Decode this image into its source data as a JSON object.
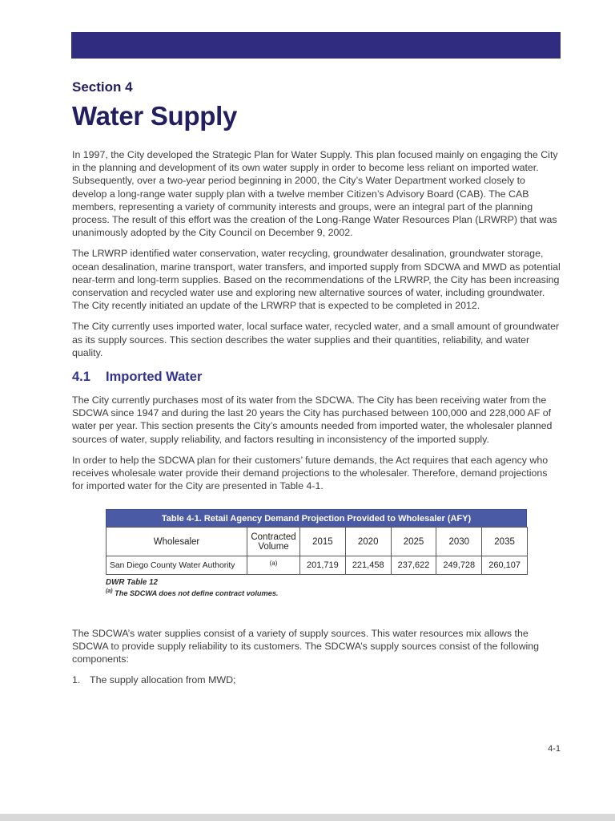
{
  "header": {
    "section_label": "Section 4",
    "title": "Water Supply"
  },
  "intro": {
    "p1": "In 1997, the City developed the Strategic Plan for Water Supply.  This plan focused mainly on engaging the City in the planning and development of its own water supply in order to become less reliant on imported water.  Subsequently, over a two-year period beginning in 2000, the City’s Water Department worked closely to develop a long-range water supply plan with a twelve member Citizen’s Advisory Board (CAB).  The CAB members, representing a variety of community interests and groups, were an integral part of the planning process.  The result of this effort was the creation of the Long-Range Water Resources Plan (LRWRP) that was unanimously adopted by the City Council on December 9, 2002.",
    "p2": "The LRWRP identified water conservation, water recycling, groundwater desalination, groundwater storage, ocean desalination, marine transport, water transfers, and imported supply from SDCWA and MWD as potential near-term and long-term supplies.  Based on the recommendations of the LRWRP, the City has been increasing conservation and recycled water use and exploring new alternative sources of water, including groundwater.  The City recently initiated an update of the LRWRP that is expected to be completed in 2012.",
    "p3": "The City currently uses imported water, local surface water, recycled water, and a small amount of groundwater as its supply sources. This section describes the water supplies and their quantities, reliability, and water quality."
  },
  "section41": {
    "number": "4.1",
    "title": "Imported Water",
    "p1": "The City currently purchases most of its water from the SDCWA.  The City has been receiving water from the SDCWA since 1947 and during the last 20 years the City has purchased between 100,000 and 228,000 AF of water per year.  This section presents the City’s amounts needed from imported water, the wholesaler planned sources of water, supply reliability, and factors resulting in inconsistency of the imported supply.",
    "p2": "In order to help the SDCWA plan for their customers’ future demands, the Act requires that each agency who receives wholesale water provide their demand projections to the wholesaler.  Therefore, demand projections for imported water for the City are presented in Table 4-1."
  },
  "table": {
    "title": "Table 4-1.  Retail Agency Demand Projection Provided to Wholesaler (AFY)",
    "columns": [
      "Wholesaler",
      "Contracted Volume",
      "2015",
      "2020",
      "2025",
      "2030",
      "2035"
    ],
    "rows": [
      [
        "San Diego County Water Authority",
        "(a)",
        "201,719",
        "221,458",
        "237,622",
        "249,728",
        "260,107"
      ]
    ],
    "source_note": "DWR Table 12",
    "footnote_marker": "(a)",
    "footnote_text": "The SDCWA does not define contract volumes."
  },
  "after_table": {
    "p1": "The SDCWA’s water supplies consist of a variety of supply sources.  This water resources mix allows the SDCWA to provide supply reliability to its customers.  The SDCWA’s supply sources consist of the following components:",
    "list_item_1_number": "1.",
    "list_item_1_text": "The supply allocation from MWD;"
  },
  "footer": {
    "page_number": "4-1"
  }
}
